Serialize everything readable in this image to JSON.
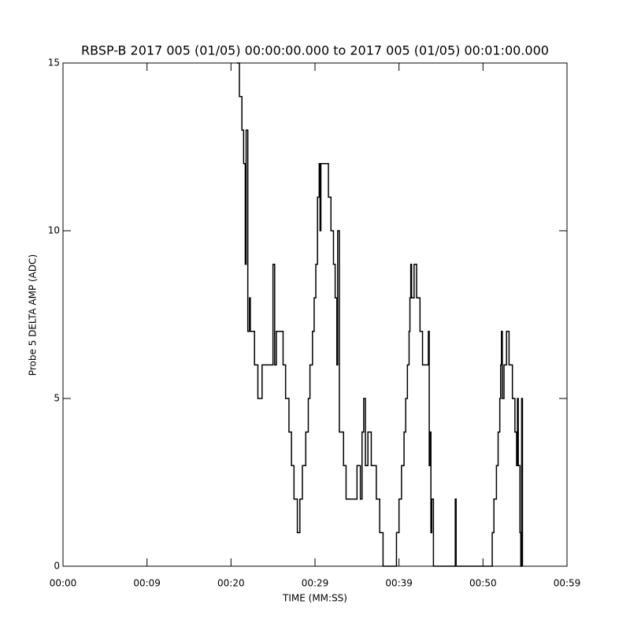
{
  "chart_data": {
    "type": "line",
    "step": true,
    "title": "RBSP-B 2017 005 (01/05) 00:00:00.000 to 2017 005 (01/05) 00:01:00.000",
    "x_label": "TIME (MM:SS)",
    "y_label": "Probe 5 DELTA AMP (ADC)",
    "xlim": [
      0,
      60
    ],
    "ylim": [
      0,
      15
    ],
    "xticks": [
      {
        "value": 0,
        "label": "00:00"
      },
      {
        "value": 10,
        "label": "00:09"
      },
      {
        "value": 20,
        "label": "00:20"
      },
      {
        "value": 30,
        "label": "00:29"
      },
      {
        "value": 40,
        "label": "00:39"
      },
      {
        "value": 50,
        "label": "00:50"
      },
      {
        "value": 60,
        "label": "00:59"
      }
    ],
    "yticks": [
      0,
      5,
      10,
      15
    ],
    "color": "#000000",
    "x": [
      20.7,
      21.0,
      21.3,
      21.5,
      21.7,
      21.8,
      22.0,
      22.2,
      22.3,
      22.8,
      23.2,
      23.4,
      23.7,
      24.8,
      25.0,
      25.2,
      25.4,
      25.9,
      26.2,
      26.5,
      26.9,
      27.2,
      27.5,
      27.9,
      28.2,
      28.5,
      28.9,
      29.2,
      29.4,
      29.7,
      29.9,
      30.1,
      30.3,
      30.5,
      30.6,
      30.7,
      31.3,
      31.6,
      31.9,
      32.2,
      32.4,
      32.6,
      32.7,
      32.9,
      33.4,
      33.7,
      34.8,
      35.0,
      35.4,
      35.6,
      35.8,
      36.0,
      36.3,
      36.7,
      37.3,
      37.7,
      38.1,
      39.5,
      39.7,
      40.0,
      40.3,
      40.6,
      40.8,
      41.0,
      41.2,
      41.3,
      41.4,
      41.5,
      41.8,
      42.1,
      42.5,
      42.8,
      43.5,
      43.6,
      43.7,
      43.8,
      43.9,
      44.1,
      46.6,
      46.7,
      46.8,
      50.9,
      51.1,
      51.3,
      51.6,
      51.8,
      52.0,
      52.1,
      52.2,
      52.3,
      52.5,
      52.8,
      53.1,
      53.5,
      53.8,
      54.0,
      54.1,
      54.2,
      54.4,
      54.5,
      54.6,
      54.7
    ],
    "values": [
      15,
      14,
      13,
      12,
      9,
      13,
      7,
      8,
      7,
      6,
      5,
      5,
      6,
      6,
      9,
      6,
      7,
      7,
      6,
      5,
      4,
      3,
      2,
      1,
      2,
      3,
      4,
      5,
      6,
      7,
      8,
      9,
      11,
      12,
      10,
      12,
      12,
      11,
      10,
      9,
      8,
      6,
      10,
      4,
      3,
      2,
      2,
      3,
      2,
      4,
      5,
      3,
      4,
      3,
      2,
      1,
      0,
      0,
      1,
      2,
      3,
      4,
      5,
      6,
      7,
      8,
      9,
      8,
      9,
      8,
      7,
      6,
      7,
      3,
      4,
      1,
      2,
      0,
      0,
      2,
      0,
      0,
      1,
      2,
      3,
      4,
      5,
      6,
      7,
      5,
      6,
      7,
      6,
      5,
      4,
      3,
      5,
      3,
      1,
      0,
      5,
      0
    ]
  }
}
